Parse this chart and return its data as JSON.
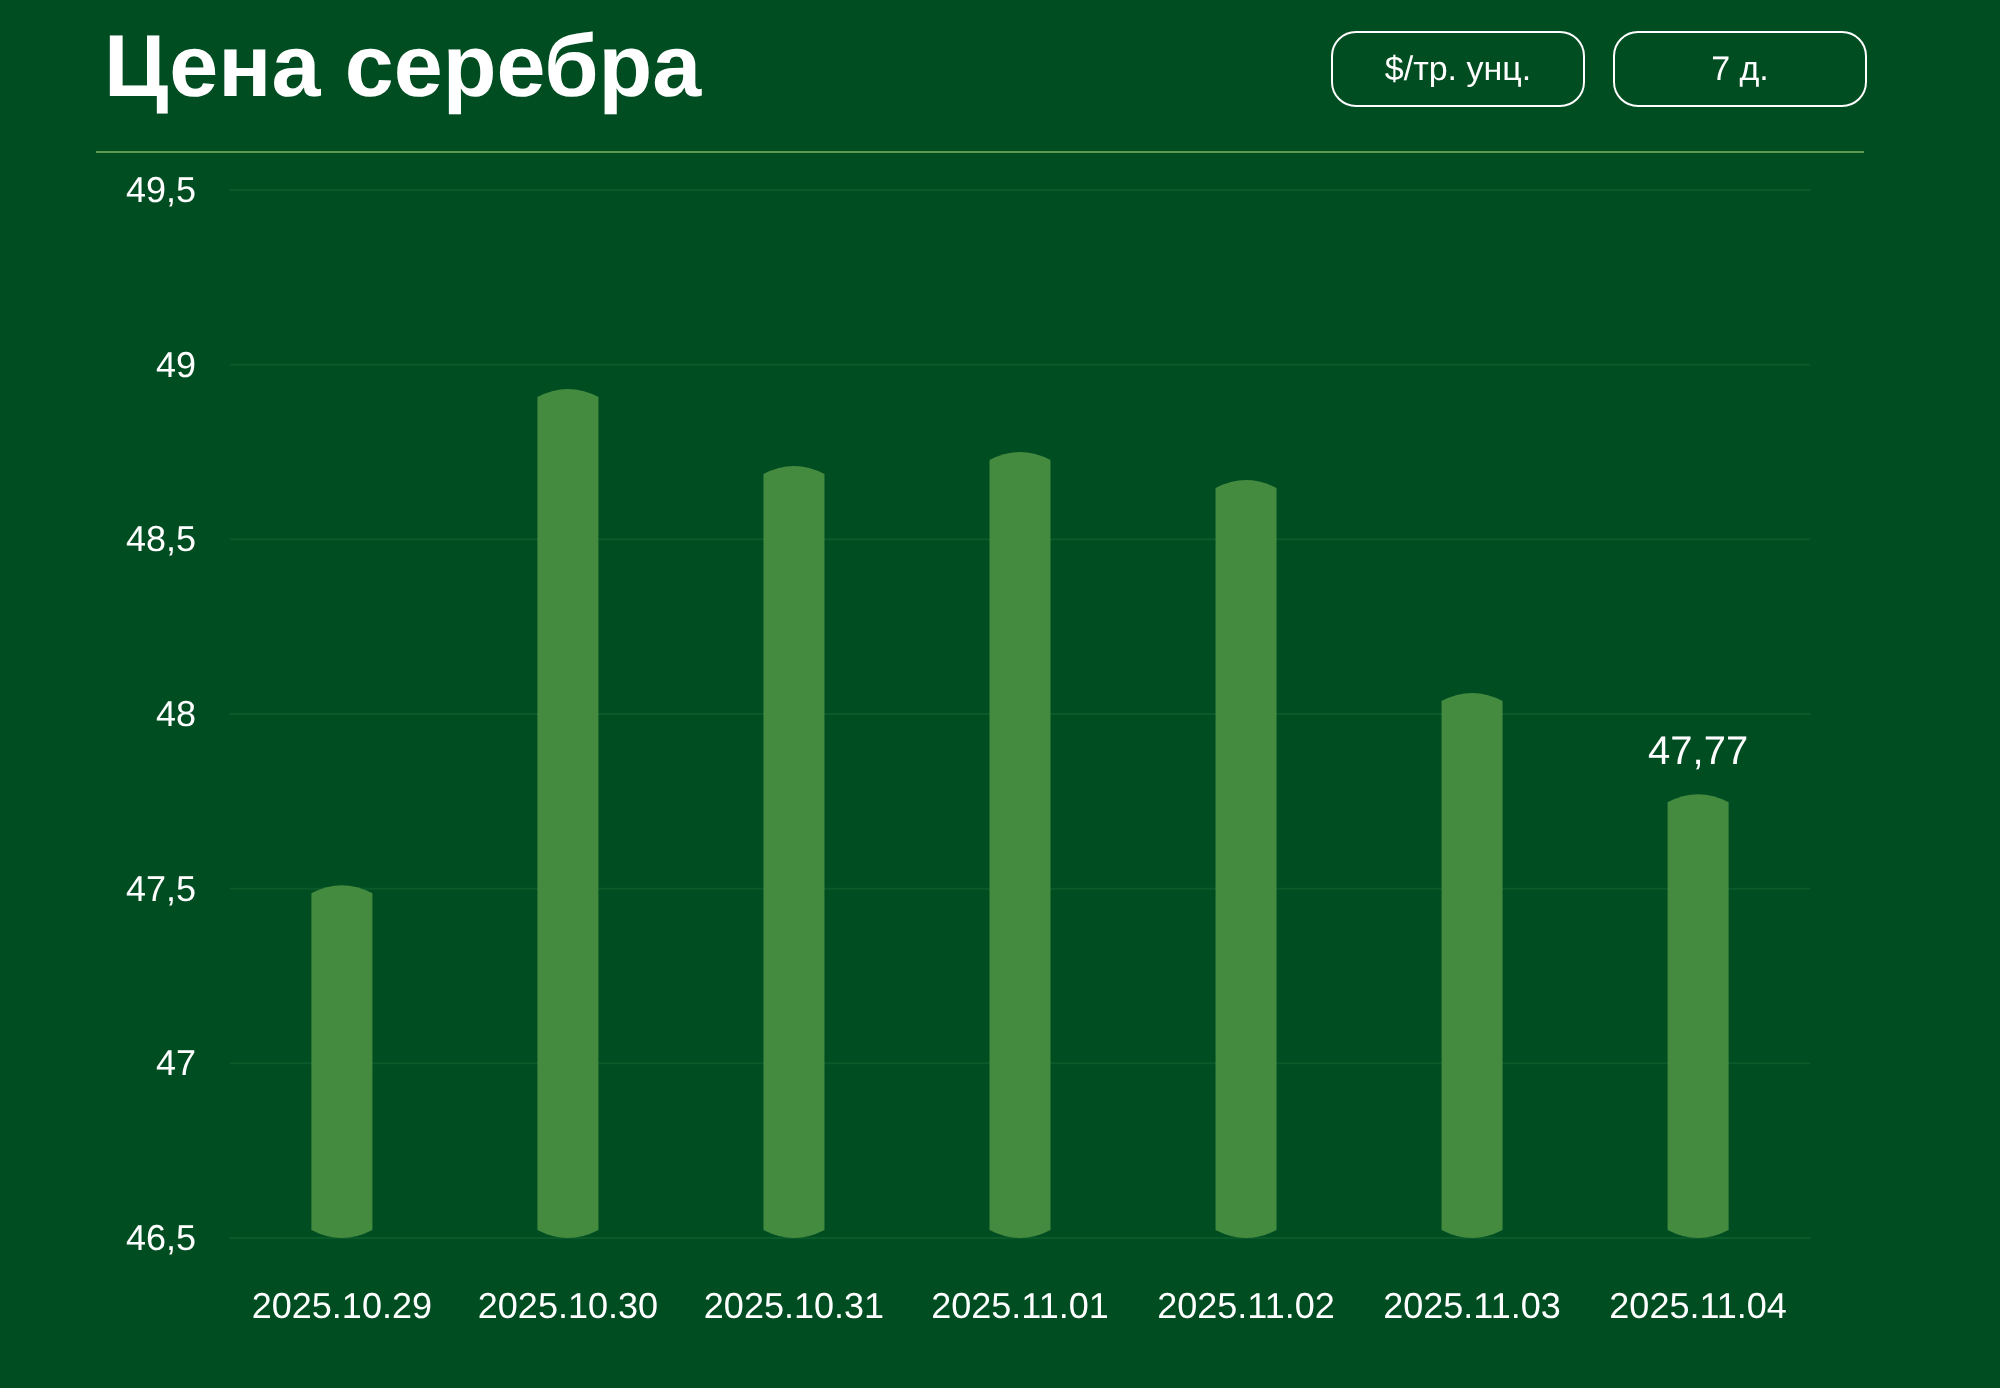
{
  "chart_data": {
    "type": "bar",
    "title": "Цена серебра",
    "annotations": [
      "$/тр. унц.",
      "7 д."
    ],
    "categories": [
      "2025.10.29",
      "2025.10.30",
      "2025.10.31",
      "2025.11.01",
      "2025.11.02",
      "2025.11.03",
      "2025.11.04"
    ],
    "values": [
      47.51,
      48.93,
      48.71,
      48.75,
      48.67,
      48.06,
      47.77
    ],
    "value_labels": [
      null,
      null,
      null,
      null,
      null,
      null,
      "47,77"
    ],
    "color": "#448a3f",
    "ylim": [
      46.5,
      49.5
    ],
    "yticks": [
      {
        "value": 46.5,
        "label": "46,5"
      },
      47,
      {
        "value": 47.5,
        "label": "47,5"
      },
      48,
      {
        "value": 48.5,
        "label": "48,5"
      },
      49,
      {
        "value": 49.5,
        "label": "49,5"
      }
    ],
    "grid": "y"
  }
}
